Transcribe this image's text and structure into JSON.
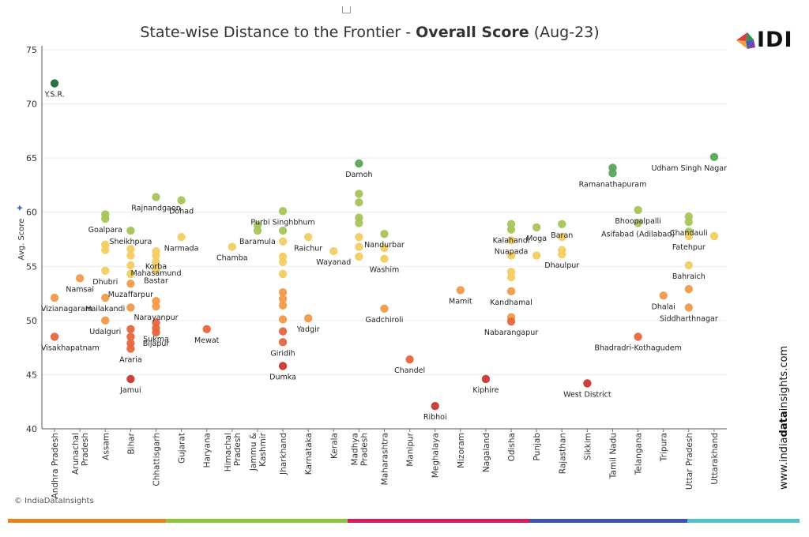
{
  "chart_data": {
    "type": "scatter",
    "title_prefix": "State-wise Distance to the Frontier - ",
    "title_bold": "Overall Score",
    "title_suffix": " (Aug-23)",
    "ylabel": "Avg. Score",
    "ylim": [
      40,
      75
    ],
    "yticks": [
      40,
      45,
      50,
      55,
      60,
      65,
      70,
      75
    ],
    "categories": [
      "Andhra Pradesh",
      "Arunachal Pradesh",
      "Assam",
      "Bihar",
      "Chhattisgarh",
      "Gujarat",
      "Haryana",
      "Himachal Pradesh",
      "Jammu & Kashmir",
      "Jharkhand",
      "Karnataka",
      "Kerala",
      "Madhya Pradesh",
      "Maharashtra",
      "Manipur",
      "Meghalaya",
      "Mizoram",
      "Nagaland",
      "Odisha",
      "Punjab",
      "Rajasthan",
      "Sikkim",
      "Tamil Nadu",
      "Telangana",
      "Tripura",
      "Uttar Pradesh",
      "Uttarakhand"
    ],
    "category_lines": [
      [
        "Andhra Pradesh"
      ],
      [
        "Arunachal",
        "Pradesh"
      ],
      [
        "Assam"
      ],
      [
        "Bihar"
      ],
      [
        "Chhattisgarh"
      ],
      [
        "Gujarat"
      ],
      [
        "Haryana"
      ],
      [
        "Himachal",
        "Pradesh"
      ],
      [
        "Jammu &",
        "Kashmir"
      ],
      [
        "Jharkhand"
      ],
      [
        "Karnataka"
      ],
      [
        "Kerala"
      ],
      [
        "Madhya",
        "Pradesh"
      ],
      [
        "Maharashtra"
      ],
      [
        "Manipur"
      ],
      [
        "Meghalaya"
      ],
      [
        "Mizoram"
      ],
      [
        "Nagaland"
      ],
      [
        "Odisha"
      ],
      [
        "Punjab"
      ],
      [
        "Rajasthan"
      ],
      [
        "Sikkim"
      ],
      [
        "Tamil Nadu"
      ],
      [
        "Telangana"
      ],
      [
        "Tripura"
      ],
      [
        "Uttar Pradesh"
      ],
      [
        "Uttarakhand"
      ]
    ],
    "points": [
      {
        "c": 0,
        "y": 71.9,
        "label": "Y.S.R."
      },
      {
        "c": 0,
        "y": 52.1,
        "label": "Vizianagaram"
      },
      {
        "c": 0,
        "y": 48.5,
        "label": "Visakhapatnam"
      },
      {
        "c": 1,
        "y": 53.9,
        "label": "Namsai"
      },
      {
        "c": 2,
        "y": 59.8,
        "label": ""
      },
      {
        "c": 2,
        "y": 59.4,
        "label": "Goalpara"
      },
      {
        "c": 2,
        "y": 57.0,
        "label": ""
      },
      {
        "c": 2,
        "y": 56.5,
        "label": ""
      },
      {
        "c": 2,
        "y": 54.6,
        "label": "Dhubri"
      },
      {
        "c": 2,
        "y": 52.1,
        "label": "Hailakandi"
      },
      {
        "c": 2,
        "y": 50.0,
        "label": "Udalguri"
      },
      {
        "c": 3,
        "y": 58.3,
        "label": "Sheikhpura"
      },
      {
        "c": 3,
        "y": 56.6,
        "label": ""
      },
      {
        "c": 3,
        "y": 56.0,
        "label": ""
      },
      {
        "c": 3,
        "y": 55.1,
        "label": ""
      },
      {
        "c": 3,
        "y": 54.3,
        "label": ""
      },
      {
        "c": 3,
        "y": 53.4,
        "label": "Muzaffarpur"
      },
      {
        "c": 3,
        "y": 51.2,
        "label": ""
      },
      {
        "c": 3,
        "y": 49.2,
        "label": ""
      },
      {
        "c": 3,
        "y": 48.5,
        "label": ""
      },
      {
        "c": 3,
        "y": 47.9,
        "label": ""
      },
      {
        "c": 3,
        "y": 47.4,
        "label": "Araria"
      },
      {
        "c": 3,
        "y": 44.6,
        "label": "Jamui"
      },
      {
        "c": 4,
        "y": 61.4,
        "label": "Rajnandgaon"
      },
      {
        "c": 4,
        "y": 56.4,
        "label": ""
      },
      {
        "c": 4,
        "y": 56.0,
        "label": "Korba"
      },
      {
        "c": 4,
        "y": 55.4,
        "label": "Mahasamund"
      },
      {
        "c": 4,
        "y": 54.7,
        "label": "Bastar"
      },
      {
        "c": 4,
        "y": 51.8,
        "label": ""
      },
      {
        "c": 4,
        "y": 51.3,
        "label": "Narayanpur"
      },
      {
        "c": 4,
        "y": 49.8,
        "label": ""
      },
      {
        "c": 4,
        "y": 49.3,
        "label": "Sukma"
      },
      {
        "c": 4,
        "y": 48.9,
        "label": "Bijapur"
      },
      {
        "c": 5,
        "y": 61.1,
        "label": "Dohad"
      },
      {
        "c": 5,
        "y": 57.7,
        "label": "Narmada"
      },
      {
        "c": 6,
        "y": 49.2,
        "label": "Mewat"
      },
      {
        "c": 7,
        "y": 56.8,
        "label": "Chamba"
      },
      {
        "c": 8,
        "y": 58.8,
        "label": ""
      },
      {
        "c": 8,
        "y": 58.3,
        "label": "Baramula"
      },
      {
        "c": 9,
        "y": 60.1,
        "label": "Purbi Singhbhum"
      },
      {
        "c": 9,
        "y": 58.3,
        "label": ""
      },
      {
        "c": 9,
        "y": 57.3,
        "label": ""
      },
      {
        "c": 9,
        "y": 55.9,
        "label": ""
      },
      {
        "c": 9,
        "y": 55.4,
        "label": ""
      },
      {
        "c": 9,
        "y": 54.3,
        "label": ""
      },
      {
        "c": 9,
        "y": 52.6,
        "label": ""
      },
      {
        "c": 9,
        "y": 52.0,
        "label": ""
      },
      {
        "c": 9,
        "y": 51.4,
        "label": ""
      },
      {
        "c": 9,
        "y": 50.1,
        "label": ""
      },
      {
        "c": 9,
        "y": 49.0,
        "label": ""
      },
      {
        "c": 9,
        "y": 48.0,
        "label": "Giridih"
      },
      {
        "c": 9,
        "y": 45.8,
        "label": "Dumka"
      },
      {
        "c": 10,
        "y": 57.7,
        "label": "Raichur"
      },
      {
        "c": 10,
        "y": 50.2,
        "label": "Yadgir"
      },
      {
        "c": 11,
        "y": 56.4,
        "label": "Wayanad"
      },
      {
        "c": 12,
        "y": 64.5,
        "label": "Damoh"
      },
      {
        "c": 12,
        "y": 61.7,
        "label": ""
      },
      {
        "c": 12,
        "y": 60.9,
        "label": ""
      },
      {
        "c": 12,
        "y": 59.5,
        "label": ""
      },
      {
        "c": 12,
        "y": 59.0,
        "label": ""
      },
      {
        "c": 12,
        "y": 57.7,
        "label": ""
      },
      {
        "c": 12,
        "y": 56.8,
        "label": ""
      },
      {
        "c": 12,
        "y": 55.9,
        "label": ""
      },
      {
        "c": 13,
        "y": 58.0,
        "label": "Nandurbar"
      },
      {
        "c": 13,
        "y": 56.7,
        "label": ""
      },
      {
        "c": 13,
        "y": 55.7,
        "label": "Washim"
      },
      {
        "c": 13,
        "y": 51.1,
        "label": "Gadchiroli"
      },
      {
        "c": 14,
        "y": 46.4,
        "label": "Chandel"
      },
      {
        "c": 15,
        "y": 42.1,
        "label": "Ribhoi"
      },
      {
        "c": 16,
        "y": 52.8,
        "label": "Mamit"
      },
      {
        "c": 17,
        "y": 44.6,
        "label": "Kiphire"
      },
      {
        "c": 18,
        "y": 58.9,
        "label": ""
      },
      {
        "c": 18,
        "y": 58.4,
        "label": "Kalahandi"
      },
      {
        "c": 18,
        "y": 57.4,
        "label": "Nuapada"
      },
      {
        "c": 18,
        "y": 56.0,
        "label": ""
      },
      {
        "c": 18,
        "y": 54.5,
        "label": ""
      },
      {
        "c": 18,
        "y": 54.0,
        "label": ""
      },
      {
        "c": 18,
        "y": 52.7,
        "label": "Kandhamal"
      },
      {
        "c": 18,
        "y": 50.3,
        "label": ""
      },
      {
        "c": 18,
        "y": 49.9,
        "label": "Nabarangapur"
      },
      {
        "c": 19,
        "y": 58.6,
        "label": "Moga"
      },
      {
        "c": 19,
        "y": 56.0,
        "label": ""
      },
      {
        "c": 20,
        "y": 58.9,
        "label": "Baran"
      },
      {
        "c": 20,
        "y": 57.7,
        "label": ""
      },
      {
        "c": 20,
        "y": 56.5,
        "label": ""
      },
      {
        "c": 20,
        "y": 56.1,
        "label": "Dhaulpur"
      },
      {
        "c": 21,
        "y": 44.2,
        "label": "West District"
      },
      {
        "c": 22,
        "y": 64.1,
        "label": ""
      },
      {
        "c": 22,
        "y": 63.6,
        "label": "Ramanathapuram"
      },
      {
        "c": 23,
        "y": 60.2,
        "label": "Bhoopalpalli"
      },
      {
        "c": 23,
        "y": 59.0,
        "label": "Asifabad (Adilabad)"
      },
      {
        "c": 23,
        "y": 48.5,
        "label": "Bhadradri-Kothagudem"
      },
      {
        "c": 24,
        "y": 52.3,
        "label": "Dhalai"
      },
      {
        "c": 25,
        "y": 59.6,
        "label": ""
      },
      {
        "c": 25,
        "y": 59.1,
        "label": "Chandauli"
      },
      {
        "c": 25,
        "y": 58.2,
        "label": ""
      },
      {
        "c": 25,
        "y": 57.8,
        "label": "Fatehpur"
      },
      {
        "c": 25,
        "y": 55.1,
        "label": "Bahraich"
      },
      {
        "c": 25,
        "y": 52.9,
        "label": ""
      },
      {
        "c": 25,
        "y": 51.2,
        "label": "Siddharthnagar"
      },
      {
        "c": 26,
        "y": 65.1,
        "label": "Udham Singh Nagar"
      },
      {
        "c": 26,
        "y": 57.8,
        "label": ""
      }
    ]
  },
  "logo_text": "IDI",
  "side_url_pre": "www.india",
  "side_url_bold": "data",
  "side_url_post": "insights.com",
  "copyright": "© IndiaDataInsights",
  "colors": {
    "dark_green": "#1a6b3a",
    "green": "#5aa55a",
    "yellow_green": "#a8c45a",
    "yellow": "#f3cd63",
    "orange": "#f19a4a",
    "red_orange": "#e6663f",
    "red": "#c8382f"
  }
}
